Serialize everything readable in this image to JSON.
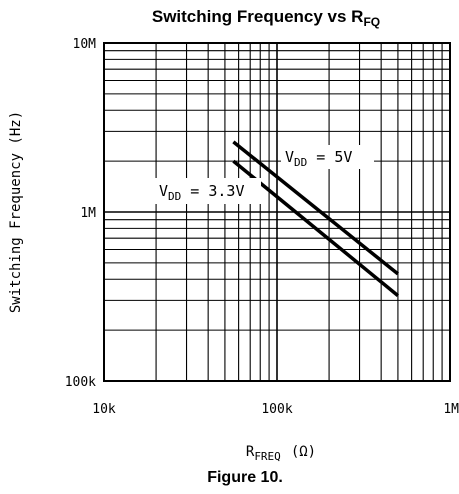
{
  "chart_data": {
    "type": "line",
    "title": "Switching Frequency vs R",
    "title_subscript": "FQ",
    "xlabel": "R",
    "xlabel_subscript": "FREQ",
    "xlabel_suffix": "(Ω)",
    "ylabel": "Switching Frequency (Hz)",
    "x_scale": "log",
    "y_scale": "log",
    "xlim": [
      10000,
      1000000
    ],
    "ylim": [
      100000,
      10000000
    ],
    "x_ticks": [
      {
        "value": 10000,
        "label": "10k"
      },
      {
        "value": 100000,
        "label": "100k"
      },
      {
        "value": 1000000,
        "label": "1M"
      }
    ],
    "y_ticks": [
      {
        "value": 10000000,
        "label": "10M"
      },
      {
        "value": 1000000,
        "label": "1M"
      },
      {
        "value": 100000,
        "label": "100k"
      }
    ],
    "grid": true,
    "legend": "none",
    "series": [
      {
        "name": "VDD = 5V",
        "label_prefix": "V",
        "label_subscript": "DD",
        "label_suffix": " = 5V",
        "x": [
          56000,
          500000
        ],
        "y": [
          2600000,
          430000
        ]
      },
      {
        "name": "VDD = 3.3V",
        "label_prefix": "V",
        "label_subscript": "DD",
        "label_suffix": " = 3.3V",
        "x": [
          56000,
          500000
        ],
        "y": [
          2000000,
          320000
        ]
      }
    ],
    "caption": "Figure 10."
  }
}
